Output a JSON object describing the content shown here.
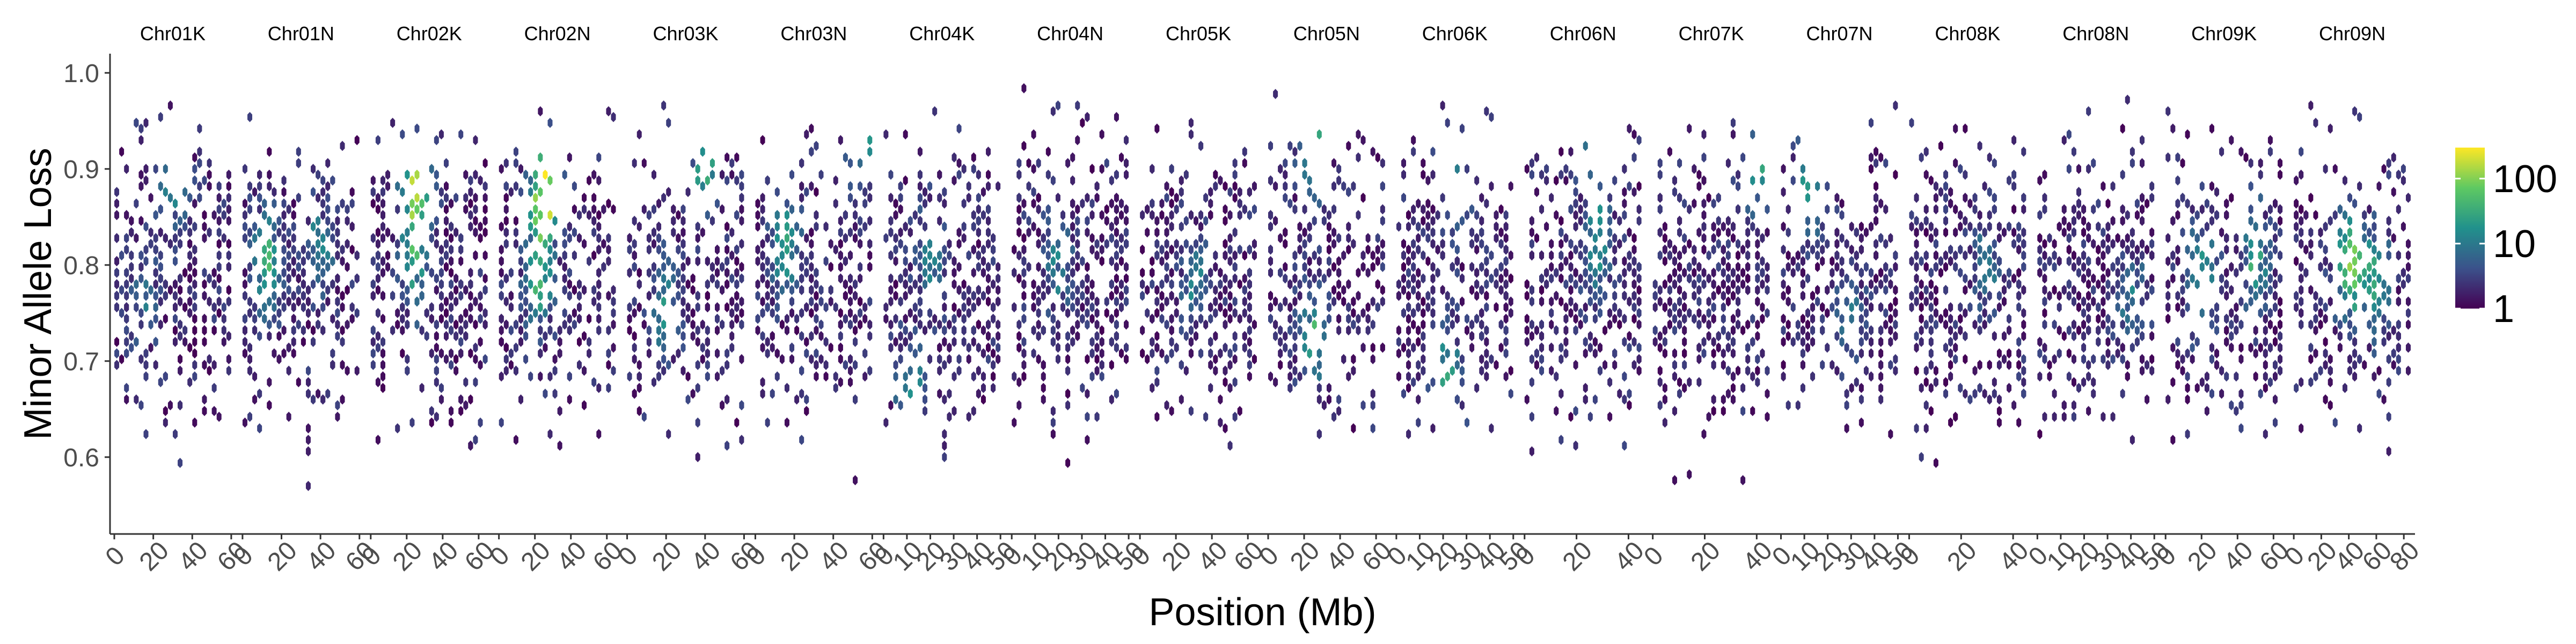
{
  "chart_data": {
    "type": "heatmap",
    "geom": "hexbin",
    "xlabel": "Position (Mb)",
    "ylabel": "Minor Allele Loss",
    "ylim": [
      0.52,
      1.02
    ],
    "y_ticks": [
      0.6,
      0.7,
      0.8,
      0.9,
      1.0
    ],
    "y_tick_labels": [
      "0.6",
      "0.7",
      "0.8",
      "0.9",
      "1.0"
    ],
    "grid": false,
    "legend": {
      "position": "right",
      "title": "",
      "scale": "log10",
      "labels": [
        "1",
        "10",
        "100"
      ],
      "values": [
        1,
        10,
        100
      ],
      "colors": [
        "#440154",
        "#3b528b",
        "#21918c",
        "#5ec962",
        "#fde725"
      ]
    },
    "panels": [
      {
        "name": "Chr01K",
        "xmax": 60,
        "ticks": [
          0,
          20,
          40,
          60
        ],
        "tick_labels": [
          "0",
          "20",
          "40",
          "60"
        ],
        "hotspots": [
          {
            "x": 30,
            "y": 0.88,
            "level": 0.45
          },
          {
            "x": 15,
            "y": 0.76,
            "level": 0.3
          }
        ]
      },
      {
        "name": "Chr01N",
        "xmax": 60,
        "ticks": [
          0,
          20,
          40,
          60
        ],
        "tick_labels": [
          "0",
          "20",
          "40",
          "60"
        ],
        "hotspots": [
          {
            "x": 12,
            "y": 0.8,
            "level": 0.6
          },
          {
            "x": 40,
            "y": 0.82,
            "level": 0.35
          }
        ]
      },
      {
        "name": "Chr02K",
        "xmax": 65,
        "ticks": [
          0,
          20,
          40,
          60
        ],
        "tick_labels": [
          "0",
          "20",
          "40",
          "60"
        ],
        "hotspots": [
          {
            "x": 25,
            "y": 0.88,
            "level": 0.9
          },
          {
            "x": 25,
            "y": 0.8,
            "level": 0.5
          }
        ]
      },
      {
        "name": "Chr02N",
        "xmax": 65,
        "ticks": [
          0,
          20,
          40,
          60
        ],
        "tick_labels": [
          "0",
          "20",
          "40",
          "60"
        ],
        "hotspots": [
          {
            "x": 25,
            "y": 0.87,
            "level": 1.0
          },
          {
            "x": 22,
            "y": 0.78,
            "level": 0.55
          }
        ]
      },
      {
        "name": "Chr03K",
        "xmax": 60,
        "ticks": [
          0,
          20,
          40,
          60
        ],
        "tick_labels": [
          "0",
          "20",
          "40",
          "60"
        ],
        "hotspots": [
          {
            "x": 40,
            "y": 0.9,
            "level": 0.5
          },
          {
            "x": 20,
            "y": 0.75,
            "level": 0.4
          }
        ]
      },
      {
        "name": "Chr03N",
        "xmax": 60,
        "ticks": [
          0,
          20,
          40,
          60
        ],
        "tick_labels": [
          "0",
          "20",
          "40",
          "60"
        ],
        "hotspots": [
          {
            "x": 15,
            "y": 0.82,
            "level": 0.55
          },
          {
            "x": 55,
            "y": 0.92,
            "level": 0.45
          }
        ]
      },
      {
        "name": "Chr04K",
        "xmax": 50,
        "ticks": [
          0,
          10,
          20,
          30,
          40,
          50
        ],
        "tick_labels": [
          "0",
          "10",
          "20",
          "30",
          "40",
          "50"
        ],
        "hotspots": [
          {
            "x": 20,
            "y": 0.8,
            "level": 0.35
          },
          {
            "x": 12,
            "y": 0.66,
            "level": 0.5
          }
        ]
      },
      {
        "name": "Chr04N",
        "xmax": 50,
        "ticks": [
          0,
          10,
          20,
          30,
          40,
          50
        ],
        "tick_labels": [
          "0",
          "10",
          "20",
          "30",
          "40",
          "50"
        ],
        "hotspots": [
          {
            "x": 20,
            "y": 0.8,
            "level": 0.35
          }
        ]
      },
      {
        "name": "Chr05K",
        "xmax": 65,
        "ticks": [
          0,
          20,
          40,
          60
        ],
        "tick_labels": [
          "0",
          "20",
          "40",
          "60"
        ],
        "hotspots": [
          {
            "x": 30,
            "y": 0.78,
            "level": 0.35
          }
        ]
      },
      {
        "name": "Chr05N",
        "xmax": 65,
        "ticks": [
          0,
          20,
          40,
          60
        ],
        "tick_labels": [
          "0",
          "20",
          "40",
          "60"
        ],
        "hotspots": [
          {
            "x": 25,
            "y": 0.93,
            "level": 0.8
          },
          {
            "x": 25,
            "y": 0.72,
            "level": 0.55
          }
        ]
      },
      {
        "name": "Chr06K",
        "xmax": 50,
        "ticks": [
          0,
          10,
          20,
          30,
          40,
          50
        ],
        "tick_labels": [
          "0",
          "10",
          "20",
          "30",
          "40",
          "50"
        ],
        "hotspots": [
          {
            "x": 22,
            "y": 0.68,
            "level": 0.55
          },
          {
            "x": 25,
            "y": 0.88,
            "level": 0.45
          }
        ]
      },
      {
        "name": "Chr06N",
        "xmax": 45,
        "ticks": [
          0,
          20,
          40
        ],
        "tick_labels": [
          "0",
          "20",
          "40"
        ],
        "hotspots": [
          {
            "x": 25,
            "y": 0.95,
            "level": 0.55
          },
          {
            "x": 28,
            "y": 0.82,
            "level": 0.5
          }
        ]
      },
      {
        "name": "Chr07K",
        "xmax": 45,
        "ticks": [
          0,
          20,
          40
        ],
        "tick_labels": [
          "0",
          "20",
          "40"
        ],
        "hotspots": [
          {
            "x": 40,
            "y": 0.9,
            "level": 0.45
          }
        ]
      },
      {
        "name": "Chr07N",
        "xmax": 50,
        "ticks": [
          0,
          10,
          20,
          30,
          40,
          50
        ],
        "tick_labels": [
          "0",
          "10",
          "20",
          "30",
          "40",
          "50"
        ],
        "hotspots": [
          {
            "x": 12,
            "y": 0.88,
            "level": 0.55
          },
          {
            "x": 30,
            "y": 0.74,
            "level": 0.35
          }
        ]
      },
      {
        "name": "Chr08K",
        "xmax": 45,
        "ticks": [
          0,
          20,
          40
        ],
        "tick_labels": [
          "0",
          "20",
          "40"
        ],
        "hotspots": [
          {
            "x": 30,
            "y": 0.8,
            "level": 0.3
          }
        ]
      },
      {
        "name": "Chr08N",
        "xmax": 50,
        "ticks": [
          0,
          10,
          20,
          30,
          40,
          50
        ],
        "tick_labels": [
          "0",
          "10",
          "20",
          "30",
          "40",
          "50"
        ],
        "hotspots": [
          {
            "x": 40,
            "y": 0.76,
            "level": 0.35
          }
        ]
      },
      {
        "name": "Chr09K",
        "xmax": 65,
        "ticks": [
          0,
          20,
          40,
          60
        ],
        "tick_labels": [
          "0",
          "20",
          "40",
          "60"
        ],
        "hotspots": [
          {
            "x": 20,
            "y": 0.78,
            "level": 0.55
          },
          {
            "x": 50,
            "y": 0.8,
            "level": 0.5
          }
        ]
      },
      {
        "name": "Chr09N",
        "xmax": 85,
        "ticks": [
          0,
          20,
          40,
          60,
          80
        ],
        "tick_labels": [
          "0",
          "20",
          "40",
          "60",
          "80"
        ],
        "hotspots": [
          {
            "x": 40,
            "y": 0.8,
            "level": 0.75
          },
          {
            "x": 60,
            "y": 0.78,
            "level": 0.55
          }
        ]
      }
    ]
  }
}
